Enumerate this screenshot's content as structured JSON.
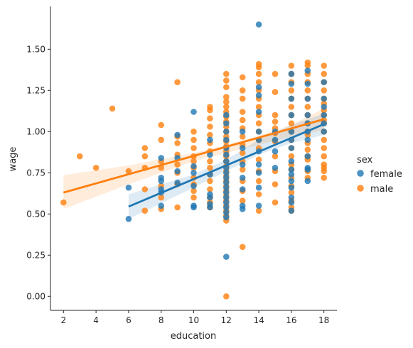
{
  "chart_data": {
    "type": "scatter",
    "xlabel": "education",
    "ylabel": "wage",
    "xlim": [
      1.2,
      18.8
    ],
    "ylim": [
      -0.085,
      1.76
    ],
    "xticks": [
      2,
      4,
      6,
      8,
      10,
      12,
      14,
      16,
      18
    ],
    "yticks": [
      0.0,
      0.25,
      0.5,
      0.75,
      1.0,
      1.25,
      1.5
    ],
    "ytick_labels": [
      "0.00",
      "0.25",
      "0.50",
      "0.75",
      "1.00",
      "1.25",
      "1.50"
    ],
    "grid": false,
    "legend": {
      "title": "sex",
      "placement": "right"
    },
    "series": [
      {
        "name": "female",
        "color": "#1f77b4",
        "points": [
          [
            6,
            0.66
          ],
          [
            6,
            0.47
          ],
          [
            8,
            0.84
          ],
          [
            8,
            0.72
          ],
          [
            8,
            0.7
          ],
          [
            8,
            0.65
          ],
          [
            8,
            0.63
          ],
          [
            8,
            0.55
          ],
          [
            9,
            0.84
          ],
          [
            9,
            0.76
          ],
          [
            9,
            0.69
          ],
          [
            9,
            0.98
          ],
          [
            10,
            1.12
          ],
          [
            10,
            0.79
          ],
          [
            10,
            0.75
          ],
          [
            10,
            0.67
          ],
          [
            10,
            0.55
          ],
          [
            10,
            0.54
          ],
          [
            11,
            0.95
          ],
          [
            11,
            0.86
          ],
          [
            11,
            0.74
          ],
          [
            11,
            0.62
          ],
          [
            11,
            0.6
          ],
          [
            11,
            0.56
          ],
          [
            11,
            0.54
          ],
          [
            12,
            1.1
          ],
          [
            12,
            1.05
          ],
          [
            12,
            1.0
          ],
          [
            12,
            0.95
          ],
          [
            12,
            0.9
          ],
          [
            12,
            0.86
          ],
          [
            12,
            0.82
          ],
          [
            12,
            0.78
          ],
          [
            12,
            0.75
          ],
          [
            12,
            0.72
          ],
          [
            12,
            0.69
          ],
          [
            12,
            0.66
          ],
          [
            12,
            0.63
          ],
          [
            12,
            0.6
          ],
          [
            12,
            0.57
          ],
          [
            12,
            0.54
          ],
          [
            12,
            0.51
          ],
          [
            12,
            0.48
          ],
          [
            12,
            0.24
          ],
          [
            13,
            1.0
          ],
          [
            13,
            0.9
          ],
          [
            13,
            0.8
          ],
          [
            13,
            0.72
          ],
          [
            13,
            0.65
          ],
          [
            13,
            0.55
          ],
          [
            13,
            0.53
          ],
          [
            14,
            1.65
          ],
          [
            14,
            1.27
          ],
          [
            14,
            1.22
          ],
          [
            14,
            1.12
          ],
          [
            14,
            1.0
          ],
          [
            14,
            0.95
          ],
          [
            14,
            0.88
          ],
          [
            14,
            0.8
          ],
          [
            14,
            0.75
          ],
          [
            14,
            0.66
          ],
          [
            14,
            0.55
          ],
          [
            15,
            1.0
          ],
          [
            15,
            0.95
          ],
          [
            15,
            0.88
          ],
          [
            15,
            0.78
          ],
          [
            16,
            1.35
          ],
          [
            16,
            1.29
          ],
          [
            16,
            1.2
          ],
          [
            16,
            1.1
          ],
          [
            16,
            1.0
          ],
          [
            16,
            0.95
          ],
          [
            16,
            0.9
          ],
          [
            16,
            0.82
          ],
          [
            16,
            0.77
          ],
          [
            16,
            0.74
          ],
          [
            16,
            0.7
          ],
          [
            16,
            0.66
          ],
          [
            16,
            0.6
          ],
          [
            16,
            0.57
          ],
          [
            16,
            0.52
          ],
          [
            17,
            1.37
          ],
          [
            17,
            1.29
          ],
          [
            17,
            1.2
          ],
          [
            17,
            1.1
          ],
          [
            17,
            1.05
          ],
          [
            17,
            1.0
          ],
          [
            17,
            0.95
          ],
          [
            17,
            0.85
          ],
          [
            17,
            0.78
          ],
          [
            17,
            0.77
          ],
          [
            17,
            0.7
          ],
          [
            18,
            1.3
          ],
          [
            18,
            1.2
          ],
          [
            18,
            1.15
          ],
          [
            18,
            1.1
          ],
          [
            18,
            1.05
          ],
          [
            18,
            1.0
          ]
        ],
        "fit_line": {
          "x": [
            6,
            18
          ],
          "y": [
            0.545,
            1.045
          ]
        },
        "ci_band": {
          "x": [
            6,
            10,
            12,
            14,
            16,
            18
          ],
          "lower": [
            0.47,
            0.66,
            0.76,
            0.86,
            0.93,
            0.98
          ],
          "upper": [
            0.62,
            0.74,
            0.83,
            0.95,
            1.04,
            1.11
          ]
        }
      },
      {
        "name": "male",
        "color": "#ff7f0e",
        "points": [
          [
            2,
            0.57
          ],
          [
            3,
            0.85
          ],
          [
            4,
            0.78
          ],
          [
            5,
            1.14
          ],
          [
            6,
            0.76
          ],
          [
            7,
            0.9
          ],
          [
            7,
            0.85
          ],
          [
            7,
            0.78
          ],
          [
            7,
            0.65
          ],
          [
            7,
            0.52
          ],
          [
            8,
            1.04
          ],
          [
            8,
            0.95
          ],
          [
            8,
            0.82
          ],
          [
            8,
            0.78
          ],
          [
            8,
            0.67
          ],
          [
            8,
            0.6
          ],
          [
            8,
            0.53
          ],
          [
            9,
            1.3
          ],
          [
            9,
            0.97
          ],
          [
            9,
            0.93
          ],
          [
            9,
            0.86
          ],
          [
            9,
            0.8
          ],
          [
            9,
            0.75
          ],
          [
            9,
            0.68
          ],
          [
            9,
            0.54
          ],
          [
            10,
            1.0
          ],
          [
            10,
            0.95
          ],
          [
            10,
            0.9
          ],
          [
            10,
            0.85
          ],
          [
            10,
            0.82
          ],
          [
            10,
            0.78
          ],
          [
            10,
            0.72
          ],
          [
            10,
            0.68
          ],
          [
            10,
            0.64
          ],
          [
            10,
            0.6
          ],
          [
            11,
            1.15
          ],
          [
            11,
            1.13
          ],
          [
            11,
            1.08
          ],
          [
            11,
            1.03
          ],
          [
            11,
            0.98
          ],
          [
            11,
            0.93
          ],
          [
            11,
            0.88
          ],
          [
            11,
            0.82
          ],
          [
            11,
            0.78
          ],
          [
            11,
            0.74
          ],
          [
            11,
            0.7
          ],
          [
            11,
            0.65
          ],
          [
            11,
            0.6
          ],
          [
            11,
            0.57
          ],
          [
            11,
            0.54
          ],
          [
            12,
            1.35
          ],
          [
            12,
            1.31
          ],
          [
            12,
            1.27
          ],
          [
            12,
            1.21
          ],
          [
            12,
            1.18
          ],
          [
            12,
            1.15
          ],
          [
            12,
            1.12
          ],
          [
            12,
            1.09
          ],
          [
            12,
            1.06
          ],
          [
            12,
            1.03
          ],
          [
            12,
            1.0
          ],
          [
            12,
            0.97
          ],
          [
            12,
            0.94
          ],
          [
            12,
            0.91
          ],
          [
            12,
            0.88
          ],
          [
            12,
            0.85
          ],
          [
            12,
            0.82
          ],
          [
            12,
            0.79
          ],
          [
            12,
            0.76
          ],
          [
            12,
            0.73
          ],
          [
            12,
            0.7
          ],
          [
            12,
            0.67
          ],
          [
            12,
            0.64
          ],
          [
            12,
            0.61
          ],
          [
            12,
            0.58
          ],
          [
            12,
            0.55
          ],
          [
            12,
            0.52
          ],
          [
            12,
            0.49
          ],
          [
            12,
            0.46
          ],
          [
            12,
            0.0
          ],
          [
            13,
            1.33
          ],
          [
            13,
            1.25
          ],
          [
            13,
            1.2
          ],
          [
            13,
            1.12
          ],
          [
            13,
            1.07
          ],
          [
            13,
            1.02
          ],
          [
            13,
            0.97
          ],
          [
            13,
            0.92
          ],
          [
            13,
            0.87
          ],
          [
            13,
            0.82
          ],
          [
            13,
            0.77
          ],
          [
            13,
            0.7
          ],
          [
            13,
            0.64
          ],
          [
            13,
            0.58
          ],
          [
            13,
            0.3
          ],
          [
            14,
            1.41
          ],
          [
            14,
            1.39
          ],
          [
            14,
            1.35
          ],
          [
            14,
            1.3
          ],
          [
            14,
            1.25
          ],
          [
            14,
            1.2
          ],
          [
            14,
            1.15
          ],
          [
            14,
            1.1
          ],
          [
            14,
            1.05
          ],
          [
            14,
            1.0
          ],
          [
            14,
            0.95
          ],
          [
            14,
            0.9
          ],
          [
            14,
            0.83
          ],
          [
            14,
            0.76
          ],
          [
            14,
            0.7
          ],
          [
            14,
            0.62
          ],
          [
            14,
            0.52
          ],
          [
            15,
            1.35
          ],
          [
            15,
            1.24
          ],
          [
            15,
            1.1
          ],
          [
            15,
            1.06
          ],
          [
            15,
            1.02
          ],
          [
            15,
            0.99
          ],
          [
            15,
            0.94
          ],
          [
            15,
            0.85
          ],
          [
            15,
            0.76
          ],
          [
            15,
            0.68
          ],
          [
            15,
            0.57
          ],
          [
            16,
            1.4
          ],
          [
            16,
            1.35
          ],
          [
            16,
            1.3
          ],
          [
            16,
            1.25
          ],
          [
            16,
            1.2
          ],
          [
            16,
            1.15
          ],
          [
            16,
            1.1
          ],
          [
            16,
            1.05
          ],
          [
            16,
            1.0
          ],
          [
            16,
            0.95
          ],
          [
            16,
            0.9
          ],
          [
            16,
            0.85
          ],
          [
            16,
            0.8
          ],
          [
            16,
            0.77
          ],
          [
            16,
            0.72
          ],
          [
            16,
            0.67
          ],
          [
            16,
            0.63
          ],
          [
            16,
            0.58
          ],
          [
            16,
            0.54
          ],
          [
            16,
            0.52
          ],
          [
            17,
            1.42
          ],
          [
            17,
            1.4
          ],
          [
            17,
            1.35
          ],
          [
            17,
            1.3
          ],
          [
            17,
            1.25
          ],
          [
            17,
            1.2
          ],
          [
            17,
            1.15
          ],
          [
            17,
            1.1
          ],
          [
            17,
            1.05
          ],
          [
            17,
            1.0
          ],
          [
            17,
            0.98
          ],
          [
            17,
            0.93
          ],
          [
            17,
            0.89
          ],
          [
            17,
            0.85
          ],
          [
            17,
            0.83
          ],
          [
            17,
            0.76
          ],
          [
            17,
            0.72
          ],
          [
            18,
            1.4
          ],
          [
            18,
            1.35
          ],
          [
            18,
            1.3
          ],
          [
            18,
            1.25
          ],
          [
            18,
            1.2
          ],
          [
            18,
            1.17
          ],
          [
            18,
            1.13
          ],
          [
            18,
            1.1
          ],
          [
            18,
            1.07
          ],
          [
            18,
            1.05
          ],
          [
            18,
            1.0
          ],
          [
            18,
            0.95
          ],
          [
            18,
            0.9
          ],
          [
            18,
            0.85
          ],
          [
            18,
            0.8
          ],
          [
            18,
            0.78
          ],
          [
            18,
            0.76
          ],
          [
            18,
            0.72
          ]
        ],
        "fit_line": {
          "x": [
            2,
            18
          ],
          "y": [
            0.63,
            1.075
          ]
        },
        "ci_band": {
          "x": [
            2,
            6,
            10,
            12,
            14,
            16,
            18
          ],
          "lower": [
            0.53,
            0.68,
            0.82,
            0.87,
            0.92,
            0.97,
            1.01
          ],
          "upper": [
            0.735,
            0.795,
            0.87,
            0.92,
            0.975,
            1.04,
            1.14
          ]
        }
      }
    ]
  }
}
